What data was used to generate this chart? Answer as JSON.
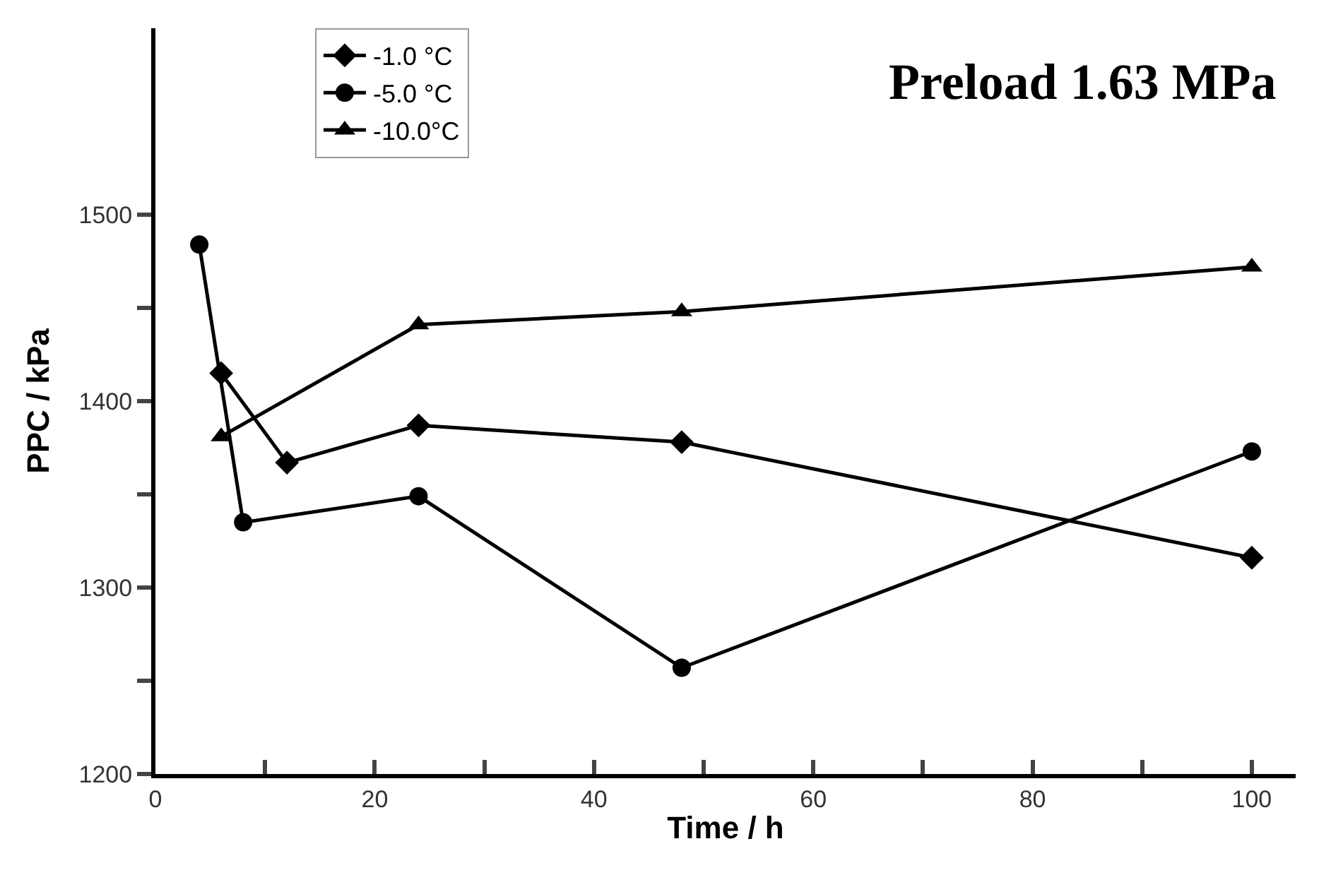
{
  "chart_data": {
    "type": "line",
    "title": "Preload 1.63 MPa",
    "xlabel": "Time / h",
    "ylabel": "PPC / kPa",
    "xlim": [
      0,
      104
    ],
    "ylim": [
      1200,
      1600
    ],
    "xticks": [
      0,
      {
        "value": 10,
        "label": null
      },
      20,
      {
        "value": 30,
        "label": null
      },
      40,
      {
        "value": 50,
        "label": null
      },
      60,
      {
        "value": 70,
        "label": null
      },
      80,
      {
        "value": 90,
        "label": null
      },
      100
    ],
    "yticks": [
      1200,
      {
        "value": 1250,
        "label": null
      },
      1300,
      {
        "value": 1350,
        "label": null
      },
      1400,
      {
        "value": 1450,
        "label": null
      },
      1500
    ],
    "legend": "top left",
    "line_style": "solid",
    "series": [
      {
        "name": "-1.0 °C",
        "color": "#000000",
        "marker": "diamond",
        "x": [
          6,
          12,
          24,
          48,
          100
        ],
        "values": [
          1415,
          1367,
          1387,
          1378,
          1316
        ]
      },
      {
        "name": "-5.0 °C",
        "color": "#000000",
        "marker": "circle",
        "x": [
          4,
          8,
          24,
          48,
          100
        ],
        "values": [
          1484,
          1335,
          1349,
          1257,
          1373
        ]
      },
      {
        "name": "-10.0°C",
        "color": "#000000",
        "marker": "triangle",
        "x": [
          6,
          24,
          48,
          100
        ],
        "values": [
          1381,
          1441,
          1448,
          1472
        ]
      }
    ]
  }
}
